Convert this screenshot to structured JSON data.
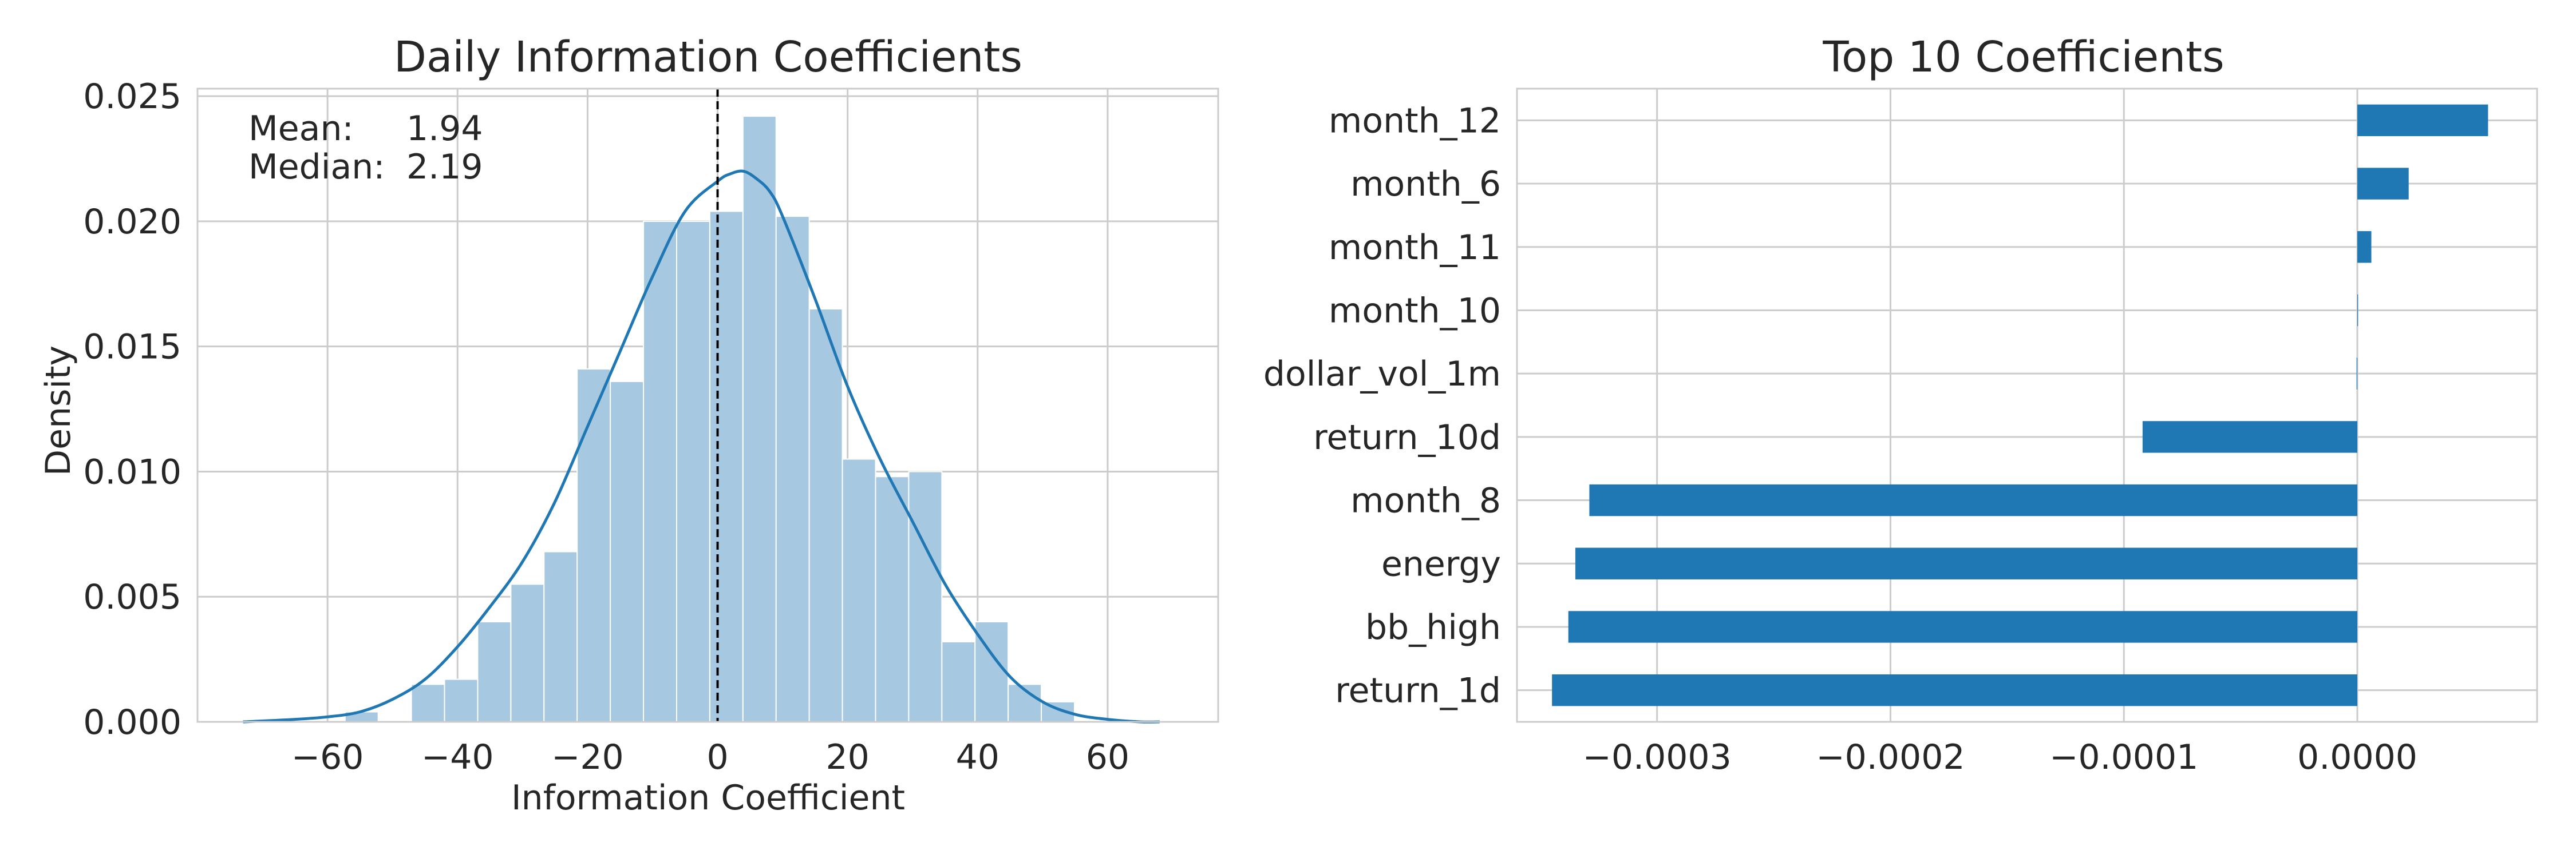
{
  "chart_data": [
    {
      "type": "histogram",
      "title": "Daily Information Coefficients",
      "xlabel": "Information Coefficient",
      "ylabel": "Density",
      "xlim": [
        -80,
        77
      ],
      "ylim": [
        0,
        0.0253
      ],
      "xticks": [
        -60,
        -40,
        -20,
        0,
        20,
        40,
        60
      ],
      "xtick_labels": [
        "−60",
        "−40",
        "−20",
        "0",
        "20",
        "40",
        "60"
      ],
      "yticks": [
        0,
        0.005,
        0.01,
        0.015,
        0.02,
        0.025
      ],
      "ytick_labels": [
        "0.000",
        "0.005",
        "0.010",
        "0.015",
        "0.020",
        "0.025"
      ],
      "grid": true,
      "bins": [
        {
          "x0": -57.3,
          "x1": -52.2,
          "y": 0.0004
        },
        {
          "x0": -52.2,
          "x1": -47.1,
          "y": 0.0
        },
        {
          "x0": -47.1,
          "x1": -42.0,
          "y": 0.0015
        },
        {
          "x0": -42.0,
          "x1": -36.9,
          "y": 0.0017
        },
        {
          "x0": -36.9,
          "x1": -31.8,
          "y": 0.004
        },
        {
          "x0": -31.8,
          "x1": -26.7,
          "y": 0.0055
        },
        {
          "x0": -26.7,
          "x1": -21.6,
          "y": 0.0068
        },
        {
          "x0": -21.6,
          "x1": -16.5,
          "y": 0.0141
        },
        {
          "x0": -16.5,
          "x1": -11.4,
          "y": 0.0136
        },
        {
          "x0": -11.4,
          "x1": -6.3,
          "y": 0.02
        },
        {
          "x0": -6.3,
          "x1": -1.2,
          "y": 0.02
        },
        {
          "x0": -1.2,
          "x1": 3.9,
          "y": 0.0204
        },
        {
          "x0": 3.9,
          "x1": 9.0,
          "y": 0.0242
        },
        {
          "x0": 9.0,
          "x1": 14.1,
          "y": 0.0202
        },
        {
          "x0": 14.1,
          "x1": 19.2,
          "y": 0.0165
        },
        {
          "x0": 19.2,
          "x1": 24.3,
          "y": 0.0105
        },
        {
          "x0": 24.3,
          "x1": 29.4,
          "y": 0.0098
        },
        {
          "x0": 29.4,
          "x1": 34.5,
          "y": 0.01
        },
        {
          "x0": 34.5,
          "x1": 39.6,
          "y": 0.0032
        },
        {
          "x0": 39.6,
          "x1": 44.7,
          "y": 0.004
        },
        {
          "x0": 44.7,
          "x1": 49.8,
          "y": 0.0015
        },
        {
          "x0": 49.8,
          "x1": 54.9,
          "y": 0.0008
        }
      ],
      "kde": {
        "x": [
          -73,
          -65,
          -60,
          -55,
          -50,
          -45,
          -40,
          -35,
          -30,
          -25,
          -20,
          -15,
          -10,
          -5,
          0,
          2,
          4,
          6,
          8,
          10,
          15,
          20,
          25,
          30,
          35,
          40,
          45,
          50,
          55,
          60,
          65,
          68
        ],
        "y": [
          0.0,
          0.0001,
          0.0002,
          0.0004,
          0.0009,
          0.0017,
          0.003,
          0.0046,
          0.0064,
          0.0088,
          0.0118,
          0.0148,
          0.0178,
          0.0204,
          0.0216,
          0.0219,
          0.022,
          0.0217,
          0.0212,
          0.0202,
          0.0169,
          0.0134,
          0.0105,
          0.008,
          0.0055,
          0.0035,
          0.0018,
          0.0008,
          0.0003,
          0.0001,
          0.0,
          0.0
        ]
      },
      "vline": {
        "x": 0,
        "style": "dashed"
      },
      "annotation": [
        {
          "label": "Mean:",
          "value": "1.94"
        },
        {
          "label": "Median:",
          "value": "2.19"
        }
      ],
      "colors": {
        "bars": "#a6c8e0",
        "kde": "#1f77b4",
        "grid": "#cccccc",
        "vline": "#000000"
      }
    },
    {
      "type": "bar",
      "orientation": "horizontal",
      "title": "Top 10 Coefficients",
      "xlabel": "",
      "ylabel": "",
      "categories": [
        "month_12",
        "month_6",
        "month_11",
        "month_10",
        "dollar_vol_1m",
        "return_10d",
        "month_8",
        "energy",
        "bb_high",
        "return_1d"
      ],
      "values": [
        5.6e-05,
        2.2e-05,
        6e-06,
        3e-07,
        -3e-07,
        -9.2e-05,
        -0.000329,
        -0.000335,
        -0.000338,
        -0.000345
      ],
      "xlim": [
        -0.00036,
        7.7e-05
      ],
      "xticks": [
        -0.0003,
        -0.0002,
        -0.0001,
        0.0
      ],
      "xtick_labels": [
        "−0.0003",
        "−0.0002",
        "−0.0001",
        "0.0000"
      ],
      "grid": true,
      "colors": {
        "bars": "#1f77b4",
        "grid": "#cccccc"
      }
    }
  ]
}
